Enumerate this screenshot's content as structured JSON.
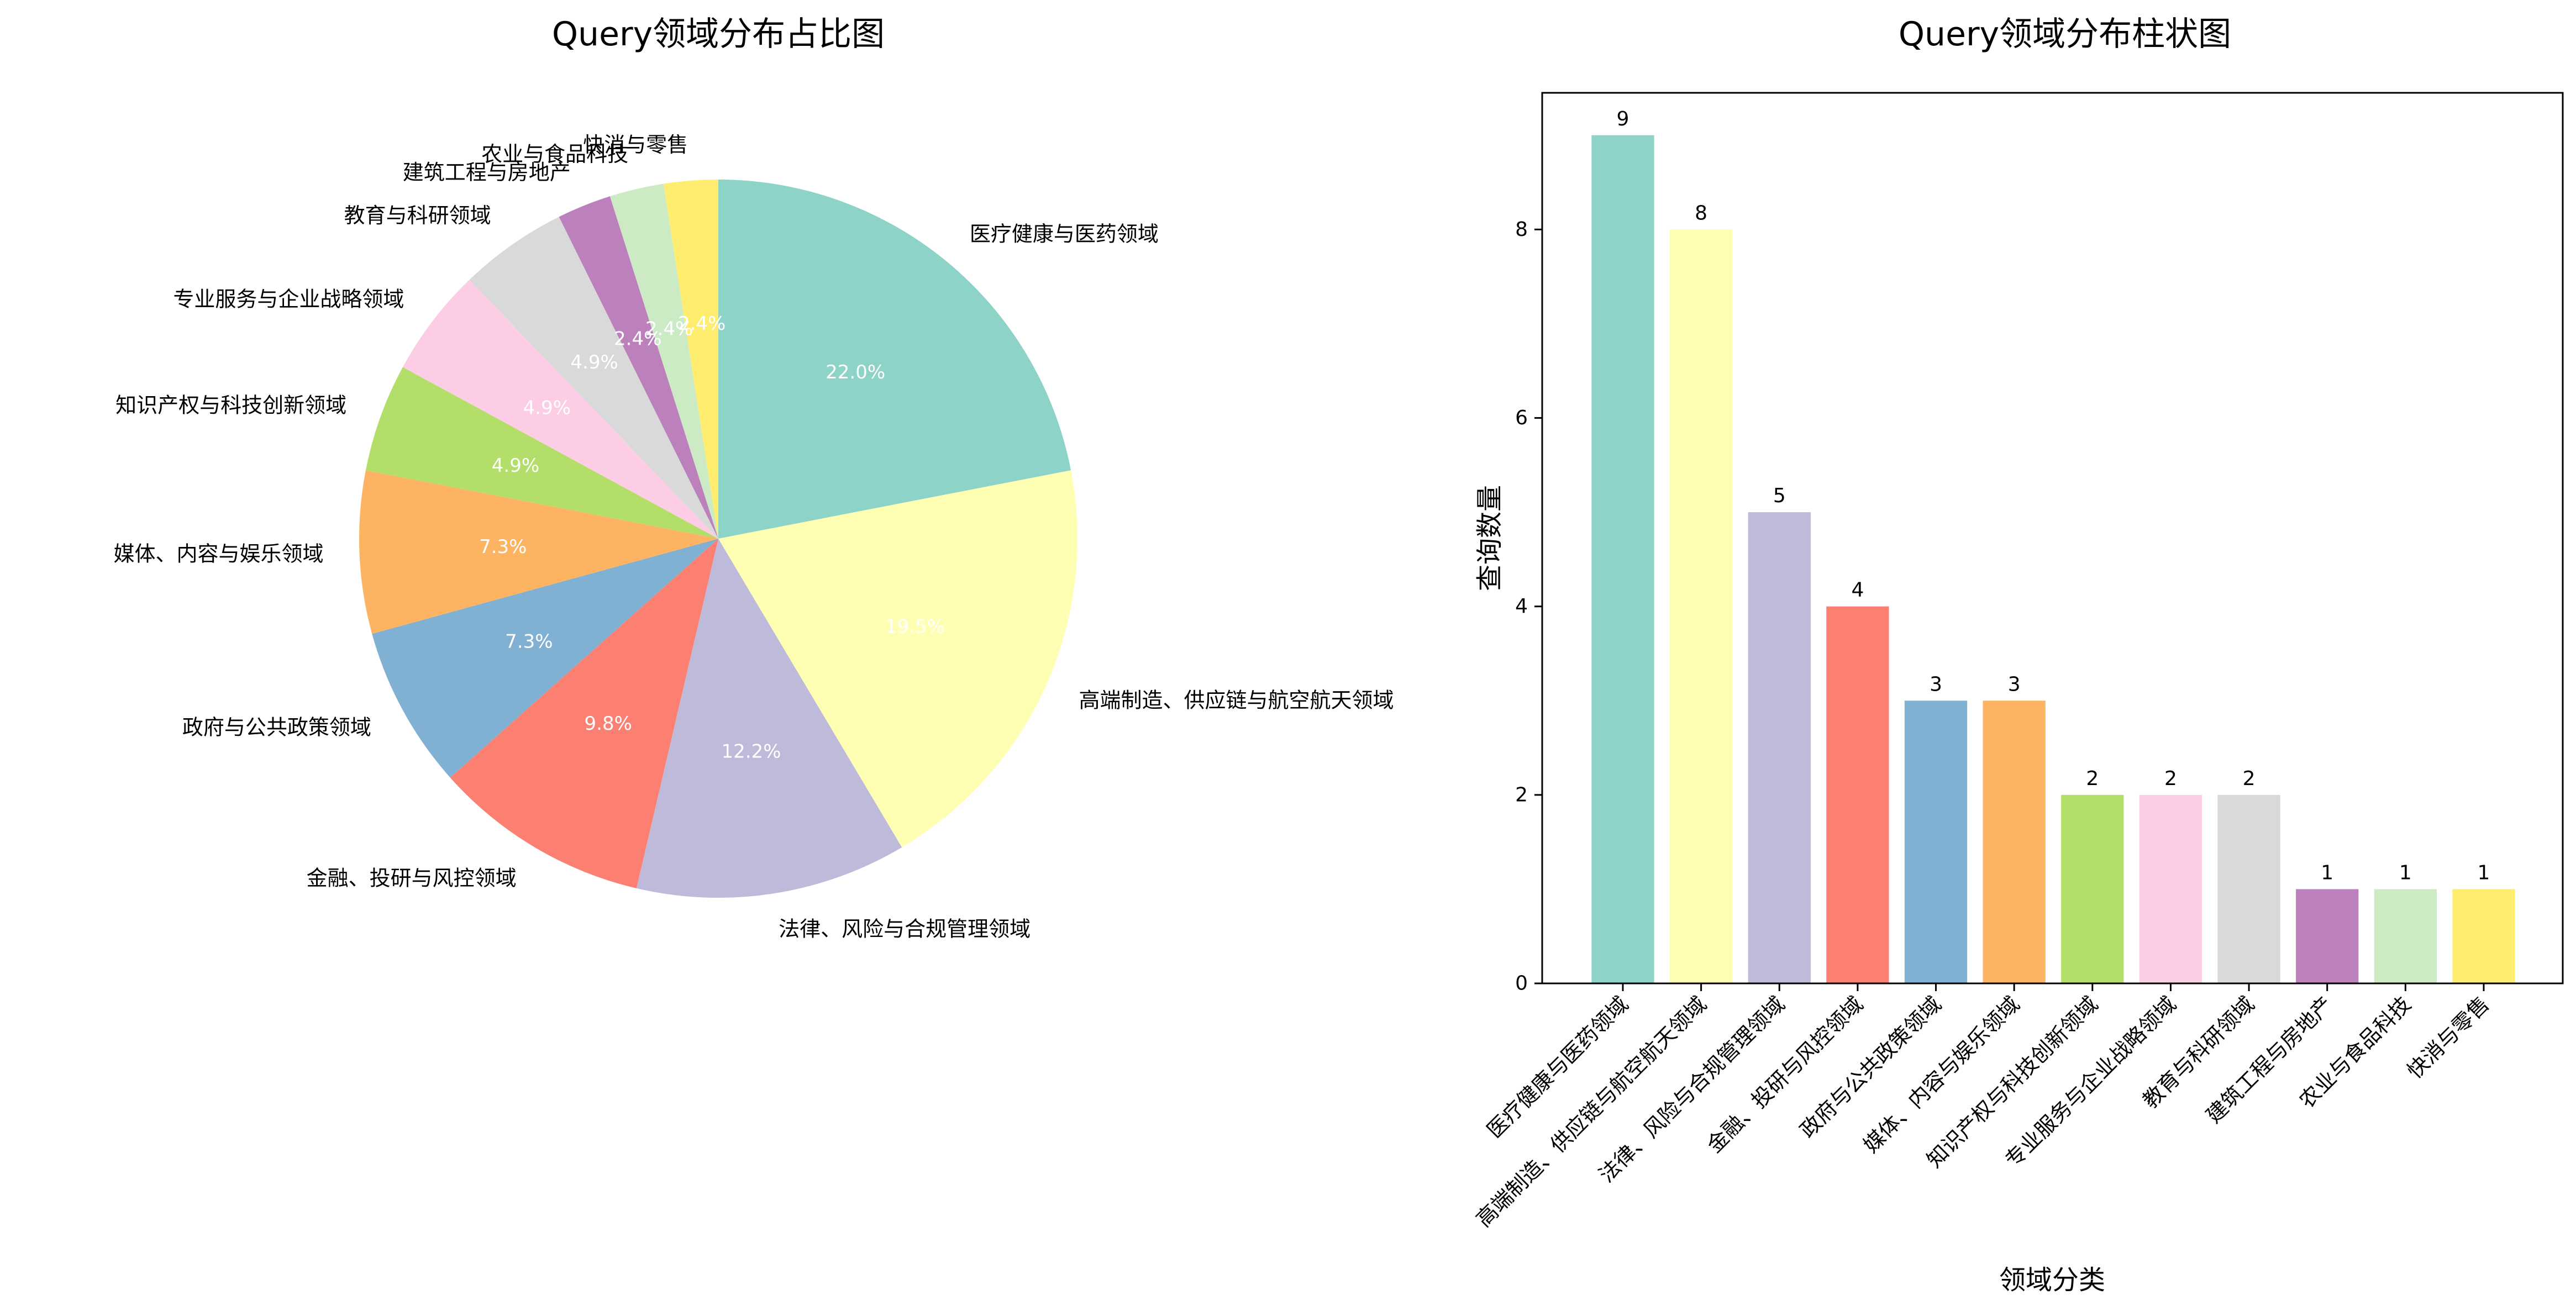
{
  "chart_data": [
    {
      "type": "pie",
      "title": "Query领域分布占比图",
      "start_angle_deg": 90,
      "direction": "clockwise",
      "slices": [
        {
          "label": "医疗健康与医药领域",
          "value": 9,
          "pct_label": "22.0%",
          "color": "#8dd3c7"
        },
        {
          "label": "高端制造、供应链与航空航天领域",
          "value": 8,
          "pct_label": "19.5%",
          "color": "#ffffb3"
        },
        {
          "label": "法律、风险与合规管理领域",
          "value": 5,
          "pct_label": "12.2%",
          "color": "#bebada"
        },
        {
          "label": "金融、投研与风控领域",
          "value": 4,
          "pct_label": "9.8%",
          "color": "#fb8072"
        },
        {
          "label": "政府与公共政策领域",
          "value": 3,
          "pct_label": "7.3%",
          "color": "#80b1d3"
        },
        {
          "label": "媒体、内容与娱乐领域",
          "value": 3,
          "pct_label": "7.3%",
          "color": "#fdb462"
        },
        {
          "label": "知识产权与科技创新领域",
          "value": 2,
          "pct_label": "4.9%",
          "color": "#b3de69"
        },
        {
          "label": "专业服务与企业战略领域",
          "value": 2,
          "pct_label": "4.9%",
          "color": "#fccde5"
        },
        {
          "label": "教育与科研领域",
          "value": 2,
          "pct_label": "4.9%",
          "color": "#d9d9d9"
        },
        {
          "label": "建筑工程与房地产",
          "value": 1,
          "pct_label": "2.4%",
          "color": "#bc80bd"
        },
        {
          "label": "农业与食品科技",
          "value": 1,
          "pct_label": "2.4%",
          "color": "#ccebc5"
        },
        {
          "label": "快消与零售",
          "value": 1,
          "pct_label": "2.4%",
          "color": "#ffed6f"
        }
      ]
    },
    {
      "type": "bar",
      "title": "Query领域分布柱状图",
      "xlabel": "领域分类",
      "ylabel": "查询数量",
      "ylim": [
        0,
        9.45
      ],
      "yticks": [
        0,
        2,
        4,
        6,
        8
      ],
      "categories": [
        "医疗健康与医药领域",
        "高端制造、供应链与航空航天领域",
        "法律、风险与合规管理领域",
        "金融、投研与风控领域",
        "政府与公共政策领域",
        "媒体、内容与娱乐领域",
        "知识产权与科技创新领域",
        "专业服务与企业战略领域",
        "教育与科研领域",
        "建筑工程与房地产",
        "农业与食品科技",
        "快消与零售"
      ],
      "values": [
        9,
        8,
        5,
        4,
        3,
        3,
        2,
        2,
        2,
        1,
        1,
        1
      ],
      "colors": [
        "#8dd3c7",
        "#ffffb3",
        "#bebada",
        "#fb8072",
        "#80b1d3",
        "#fdb462",
        "#b3de69",
        "#fccde5",
        "#d9d9d9",
        "#bc80bd",
        "#ccebc5",
        "#ffed6f"
      ],
      "grid": false,
      "legend": "none"
    }
  ]
}
